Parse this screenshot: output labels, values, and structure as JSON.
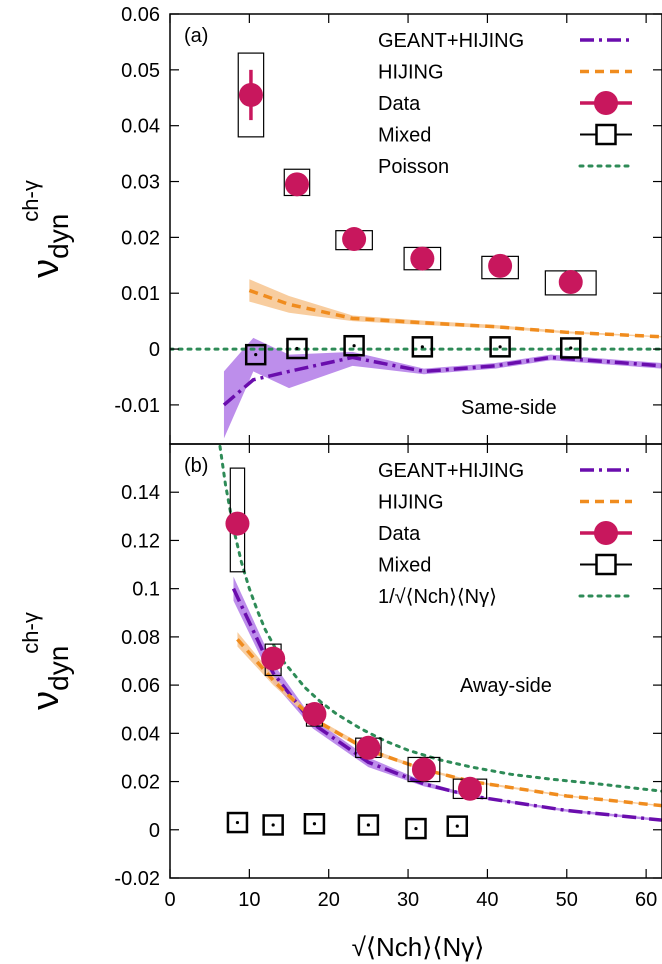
{
  "chart_data": [
    {
      "type": "line",
      "panel_tag": "(a)",
      "region_label": "Same-side",
      "ylabel": {
        "base": "ν",
        "sub": "dyn",
        "sup": "ch-γ"
      },
      "xlim": [
        0,
        62
      ],
      "ylim": [
        -0.017,
        0.06
      ],
      "yticks": [
        -0.01,
        0,
        0.01,
        0.02,
        0.03,
        0.04,
        0.05,
        0.06
      ],
      "ytick_labels": [
        "-0.01",
        "0",
        "0.01",
        "0.02",
        "0.03",
        "0.04",
        "0.05",
        "0.06"
      ],
      "legend": [
        "GEANT+HIJING",
        "HIJING",
        "Data",
        "Mixed",
        "Poisson"
      ],
      "series": [
        {
          "name": "GEANT+HIJING",
          "kind": "band",
          "color": "#6a0dad",
          "band_color": "#b27ae8",
          "x": [
            6.8,
            10.5,
            15,
            23,
            32,
            41,
            48,
            62
          ],
          "y": [
            -0.01,
            -0.0055,
            -0.004,
            -0.0015,
            -0.004,
            -0.003,
            -0.0015,
            -0.003
          ],
          "band_lo": [
            -0.016,
            -0.004,
            -0.007,
            -0.003,
            -0.0045,
            -0.0035,
            -0.002,
            -0.0035
          ],
          "band_hi": [
            -0.004,
            0.002,
            -0.001,
            -0.0005,
            -0.0035,
            -0.0025,
            -0.001,
            -0.0025
          ]
        },
        {
          "name": "HIJING",
          "kind": "band",
          "color": "#f08c1e",
          "band_color": "#f7c48e",
          "x": [
            10,
            15,
            23,
            32,
            41,
            50,
            62
          ],
          "y": [
            0.0105,
            0.008,
            0.0055,
            0.0047,
            0.004,
            0.003,
            0.0022
          ],
          "band_lo": [
            0.0085,
            0.0065,
            0.005,
            0.0043,
            0.0037,
            0.0028,
            0.0021
          ],
          "band_hi": [
            0.0125,
            0.0095,
            0.006,
            0.0051,
            0.0043,
            0.0032,
            0.0023
          ]
        },
        {
          "name": "Data",
          "kind": "points",
          "color": "#c8175d",
          "x": [
            10.2,
            16.0,
            23.2,
            31.8,
            41.6,
            50.5
          ],
          "y": [
            0.0455,
            0.0295,
            0.0197,
            0.0162,
            0.0149,
            0.012
          ],
          "yerr": [
            0.0045,
            0.0008,
            0.0005,
            0.0005,
            0.0005,
            0.0005
          ],
          "sys_dx": [
            1.6,
            1.6,
            2.3,
            2.3,
            2.3,
            3.2
          ],
          "sys_lo": [
            0.038,
            0.0275,
            0.0178,
            0.0142,
            0.0126,
            0.0097
          ],
          "sys_hi": [
            0.053,
            0.0322,
            0.0212,
            0.0182,
            0.0166,
            0.014
          ]
        },
        {
          "name": "Mixed",
          "kind": "squares",
          "x": [
            10.8,
            16.0,
            23.2,
            31.8,
            41.6,
            50.5
          ],
          "y": [
            -0.001,
            0.0001,
            0.0006,
            0.0004,
            0.0004,
            0.0002
          ]
        },
        {
          "name": "Poisson",
          "kind": "dotted",
          "color": "#2e8b57",
          "x": [
            0,
            62
          ],
          "y": [
            0,
            0
          ]
        }
      ]
    },
    {
      "type": "line",
      "panel_tag": "(b)",
      "region_label": "Away-side",
      "xlabel": "√⟨Nch⟩⟨Nγ⟩",
      "ylabel": {
        "base": "ν",
        "sub": "dyn",
        "sup": "ch-γ"
      },
      "xlim": [
        0,
        62
      ],
      "ylim": [
        -0.02,
        0.16
      ],
      "xticks": [
        0,
        10,
        20,
        30,
        40,
        50,
        60
      ],
      "yticks": [
        -0.02,
        0,
        0.02,
        0.04,
        0.06,
        0.08,
        0.1,
        0.12,
        0.14
      ],
      "ytick_labels": [
        "-0.02",
        "0",
        "0.02",
        "0.04",
        "0.06",
        "0.08",
        "0.1",
        "0.12",
        "0.14"
      ],
      "legend": [
        "GEANT+HIJING",
        "HIJING",
        "Data",
        "Mixed",
        "1/√⟨Nch⟩⟨Nγ⟩"
      ],
      "series": [
        {
          "name": "GEANT+HIJING",
          "kind": "band",
          "color": "#6a0dad",
          "band_color": "#b27ae8",
          "x": [
            8,
            13,
            18,
            25,
            32,
            38,
            50,
            62
          ],
          "y": [
            0.1,
            0.065,
            0.044,
            0.028,
            0.019,
            0.014,
            0.008,
            0.004
          ],
          "band_lo": [
            0.095,
            0.061,
            0.042,
            0.026,
            0.018,
            0.0135,
            0.0075,
            0.0035
          ],
          "band_hi": [
            0.105,
            0.069,
            0.046,
            0.03,
            0.02,
            0.0145,
            0.0085,
            0.0045
          ]
        },
        {
          "name": "HIJING",
          "kind": "band",
          "color": "#f08c1e",
          "band_color": "#f7c48e",
          "x": [
            8.5,
            13,
            18,
            25,
            32,
            38,
            50,
            62
          ],
          "y": [
            0.079,
            0.062,
            0.046,
            0.033,
            0.025,
            0.02,
            0.014,
            0.01
          ],
          "band_lo": [
            0.076,
            0.06,
            0.045,
            0.032,
            0.0245,
            0.0195,
            0.0137,
            0.0097
          ],
          "band_hi": [
            0.082,
            0.064,
            0.047,
            0.034,
            0.0255,
            0.0205,
            0.0143,
            0.0103
          ]
        },
        {
          "name": "Data",
          "kind": "points",
          "color": "#c8175d",
          "x": [
            8.5,
            13.0,
            18.2,
            25.0,
            32.0,
            37.8
          ],
          "y": [
            0.127,
            0.071,
            0.048,
            0.034,
            0.025,
            0.017
          ],
          "yerr": [
            0.003,
            0.002,
            0.0015,
            0.001,
            0.001,
            0.001
          ],
          "sys_dx": [
            0.9,
            1.0,
            1.0,
            1.6,
            2.0,
            2.1
          ],
          "sys_lo": [
            0.107,
            0.064,
            0.043,
            0.03,
            0.02,
            0.013
          ],
          "sys_hi": [
            0.15,
            0.077,
            0.052,
            0.038,
            0.03,
            0.021
          ]
        },
        {
          "name": "Mixed",
          "kind": "squares",
          "x": [
            8.5,
            13.0,
            18.2,
            25.0,
            31.0,
            36.2
          ],
          "y": [
            0.003,
            0.002,
            0.0025,
            0.002,
            0.0005,
            0.0015
          ]
        },
        {
          "name": "1/√⟨Nch⟩⟨Nγ⟩",
          "kind": "dotted-curve",
          "color": "#2e8b57",
          "x": [
            6.3,
            7,
            8,
            9,
            10,
            11,
            12,
            13,
            14,
            15,
            17,
            19,
            21,
            24,
            27,
            30,
            34,
            38,
            43,
            48,
            54,
            62
          ],
          "y": [
            0.159,
            0.143,
            0.125,
            0.111,
            0.1,
            0.091,
            0.083,
            0.077,
            0.071,
            0.067,
            0.059,
            0.053,
            0.048,
            0.042,
            0.037,
            0.033,
            0.029,
            0.026,
            0.023,
            0.021,
            0.019,
            0.016
          ]
        }
      ]
    }
  ]
}
